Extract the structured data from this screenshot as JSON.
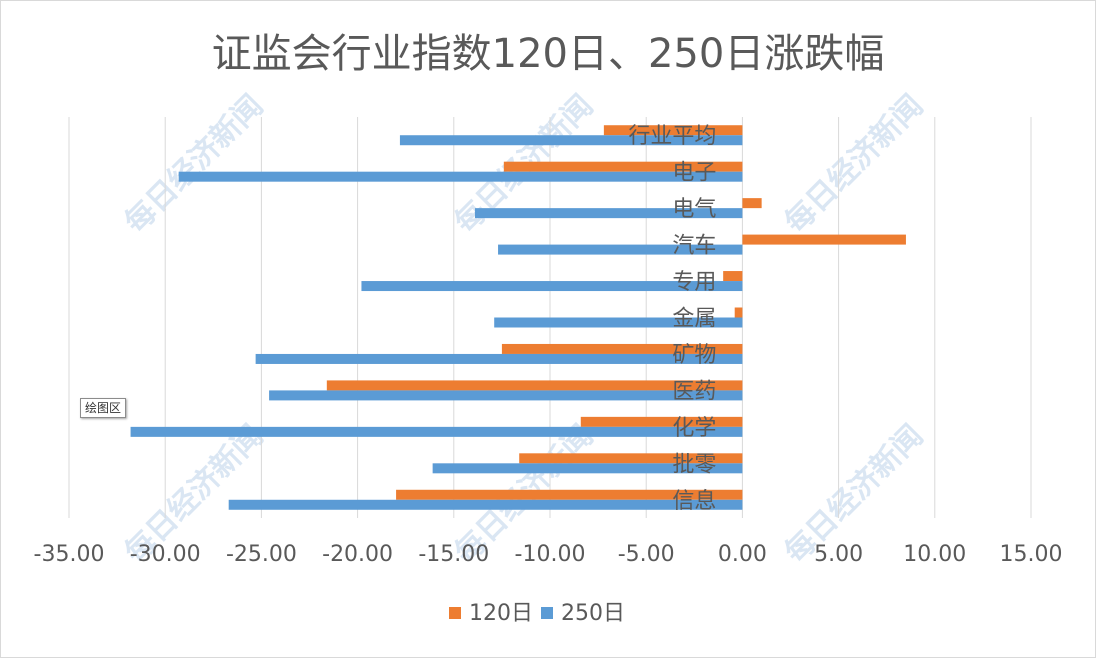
{
  "chart_data": {
    "type": "bar",
    "orientation": "horizontal",
    "title": "证监会行业指数120日、250日涨跌幅",
    "categories": [
      "行业平均",
      "电子",
      "电气",
      "汽车",
      "专用",
      "金属",
      "矿物",
      "医药",
      "化学",
      "批零",
      "信息"
    ],
    "series": [
      {
        "name": "120日",
        "color": "#ed7d31",
        "values": [
          -7.2,
          -12.4,
          1.0,
          8.5,
          -1.0,
          -0.4,
          -12.5,
          -21.6,
          -8.4,
          -11.6,
          -18.0
        ]
      },
      {
        "name": "250日",
        "color": "#5b9bd5",
        "values": [
          -17.8,
          -29.3,
          -13.9,
          -12.7,
          -19.8,
          -12.9,
          -25.3,
          -24.6,
          -31.8,
          -16.1,
          -26.7
        ]
      }
    ],
    "x_ticks": [
      "-35.00",
      "-30.00",
      "-25.00",
      "-20.00",
      "-15.00",
      "-10.00",
      "-5.00",
      "0.00",
      "5.00",
      "10.00",
      "15.00"
    ],
    "xlim": [
      -35,
      15
    ],
    "grid": true,
    "legend_position": "bottom"
  },
  "watermark": "每日经济新闻",
  "tooltip": "绘图区"
}
